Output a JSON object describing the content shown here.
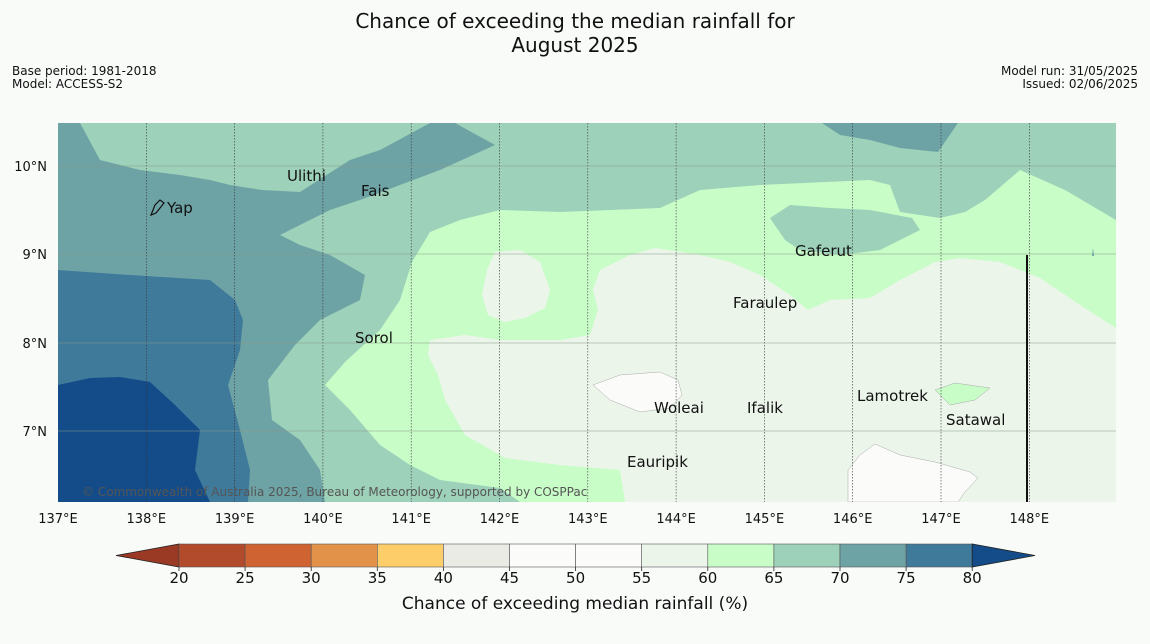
{
  "header": {
    "title_line1": "Chance of exceeding the median rainfall for",
    "title_line2": "August 2025",
    "base_period": "Base period: 1981-2018",
    "model": "Model: ACCESS-S2",
    "model_run": "Model run: 31/05/2025",
    "issued": "Issued: 02/06/2025"
  },
  "map": {
    "lon_labels": [
      "137°E",
      "138°E",
      "139°E",
      "140°E",
      "141°E",
      "142°E",
      "143°E",
      "144°E",
      "145°E",
      "146°E",
      "147°E",
      "148°E"
    ],
    "lat_labels": [
      "10°N",
      "9°N",
      "8°N",
      "7°N"
    ],
    "places": [
      {
        "name": "Ulithi"
      },
      {
        "name": "Fais"
      },
      {
        "name": "Yap"
      },
      {
        "name": "Gaferut"
      },
      {
        "name": "Faraulep"
      },
      {
        "name": "Sorol"
      },
      {
        "name": "Lamotrek"
      },
      {
        "name": "Woleai"
      },
      {
        "name": "Ifalik"
      },
      {
        "name": "Satawal"
      },
      {
        "name": "Eauripik"
      }
    ],
    "copyright": "© Commonwealth of Australia 2025, Bureau of Meteorology, supported by COSPPac"
  },
  "colorbar": {
    "ticks": [
      "20",
      "25",
      "30",
      "35",
      "40",
      "45",
      "50",
      "55",
      "60",
      "65",
      "70",
      "75",
      "80"
    ],
    "colors": [
      "#b24a2c",
      "#cf6332",
      "#e3924a",
      "#fdcd6a",
      "#ebebe6",
      "#fbfcfa",
      "#fbfcfa",
      "#ebf5ea",
      "#c8fdc8",
      "#9dd1b9",
      "#6ea3a5",
      "#407a9b"
    ],
    "under_color": "#9a3a24",
    "over_color": "#134c88",
    "label": "Chance of exceeding median rainfall (%)"
  }
}
